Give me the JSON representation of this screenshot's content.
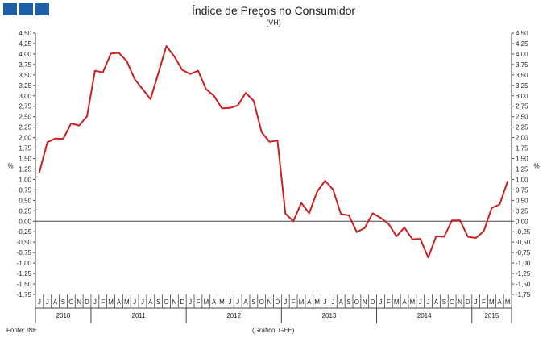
{
  "header": {
    "title": "Índice de Preços no Consumidor",
    "subtitle": "(VH)"
  },
  "footer": {
    "source": "Fonte: INE",
    "credit": "(Gráfico: GEE)"
  },
  "colors": {
    "logo": "#1f5fa8",
    "series": "#cc1f1f"
  },
  "chart_data": {
    "type": "line",
    "ylabel_left": "%",
    "ylabel_right": "%",
    "ylim": [
      -1.75,
      4.5
    ],
    "y_ticks": [
      "4,50",
      "4,25",
      "4,00",
      "3,75",
      "3,50",
      "3,25",
      "3,00",
      "2,75",
      "2,50",
      "2,25",
      "2,00",
      "1,75",
      "1,50",
      "1,25",
      "1,00",
      "0,75",
      "0,50",
      "0,25",
      "0,00",
      "-0,25",
      "-0,50",
      "-0,75",
      "-1,00",
      "-1,25",
      "-1,50",
      "-1,75"
    ],
    "month_labels": [
      "J",
      "J",
      "A",
      "S",
      "O",
      "N",
      "D",
      "J",
      "F",
      "M",
      "A",
      "M",
      "J",
      "J",
      "A",
      "S",
      "O",
      "N",
      "D",
      "J",
      "F",
      "M",
      "A",
      "M",
      "J",
      "J",
      "A",
      "S",
      "O",
      "N",
      "D",
      "J",
      "F",
      "M",
      "A",
      "M",
      "J",
      "J",
      "A",
      "S",
      "O",
      "N",
      "D",
      "J",
      "F",
      "M",
      "A",
      "M",
      "J",
      "J",
      "A",
      "S",
      "O",
      "N",
      "D",
      "J",
      "F",
      "M",
      "A",
      "M"
    ],
    "years": [
      {
        "label": "2010",
        "months": 7
      },
      {
        "label": "2011",
        "months": 12
      },
      {
        "label": "2012",
        "months": 12
      },
      {
        "label": "2013",
        "months": 12
      },
      {
        "label": "2014",
        "months": 12
      },
      {
        "label": "2015",
        "months": 5
      }
    ],
    "series": [
      {
        "values": [
          1.17,
          1.89,
          1.98,
          1.97,
          2.34,
          2.29,
          2.51,
          3.6,
          3.56,
          4.01,
          4.03,
          3.83,
          3.4,
          3.16,
          2.92,
          3.55,
          4.19,
          3.94,
          3.62,
          3.52,
          3.6,
          3.16,
          3.0,
          2.7,
          2.71,
          2.77,
          3.07,
          2.88,
          2.13,
          1.9,
          1.93,
          0.18,
          0.0,
          0.44,
          0.19,
          0.71,
          0.97,
          0.76,
          0.17,
          0.14,
          -0.26,
          -0.16,
          0.19,
          0.08,
          -0.06,
          -0.36,
          -0.15,
          -0.43,
          -0.42,
          -0.87,
          -0.36,
          -0.37,
          0.02,
          0.02,
          -0.37,
          -0.4,
          -0.24,
          0.32,
          0.4,
          0.95
        ]
      }
    ]
  }
}
